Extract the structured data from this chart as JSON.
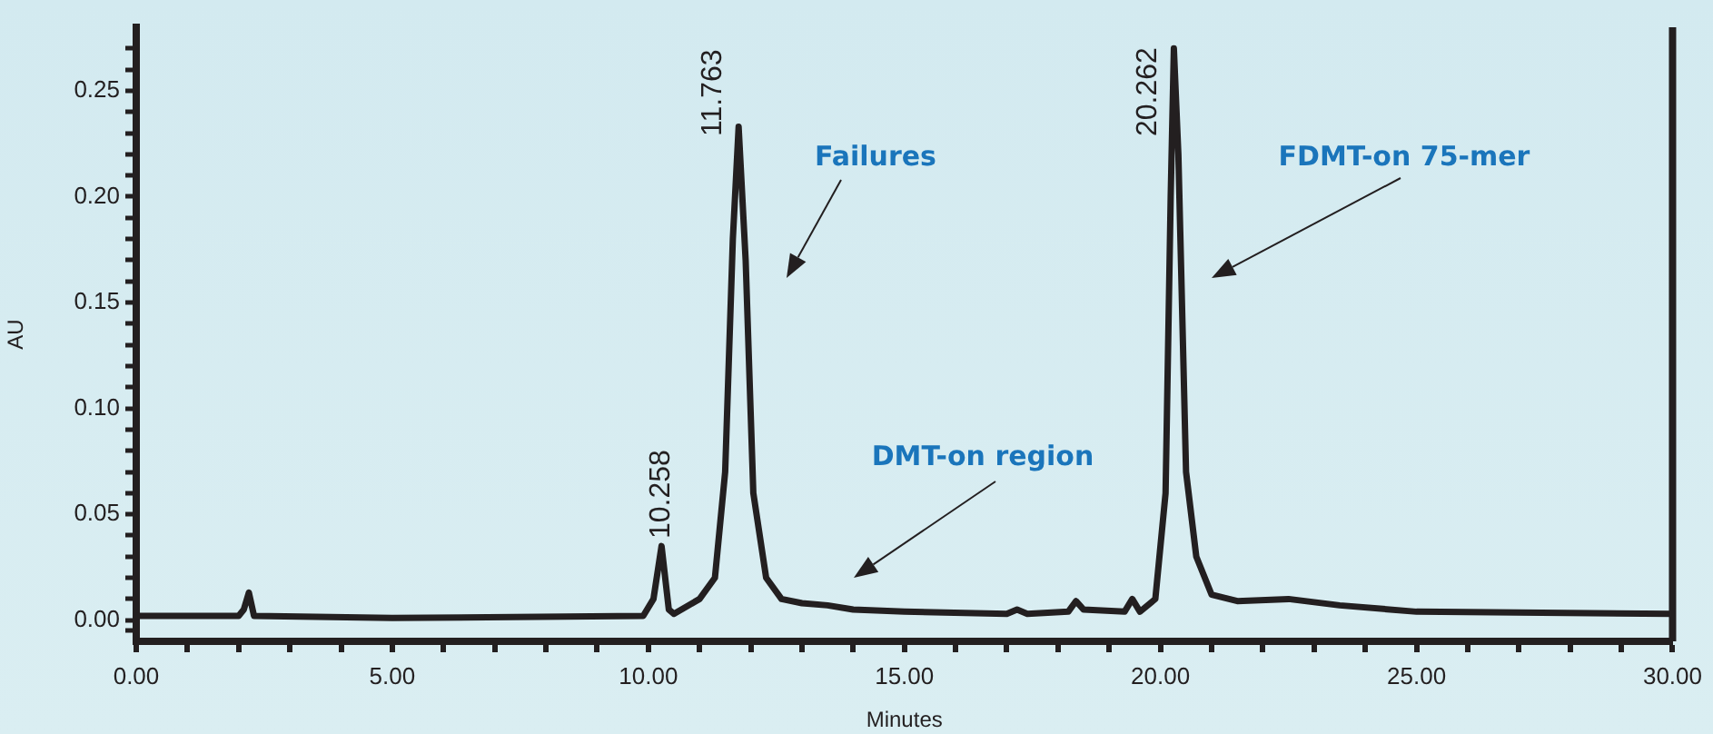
{
  "chart_data": {
    "type": "line",
    "xlabel": "Minutes",
    "ylabel": "AU",
    "xlim": [
      0,
      30
    ],
    "ylim": [
      -0.01,
      0.28
    ],
    "xticks": [
      {
        "value": 0,
        "label": "0.00"
      },
      {
        "value": 1,
        "label": null
      },
      {
        "value": 2,
        "label": null
      },
      {
        "value": 3,
        "label": null
      },
      {
        "value": 4,
        "label": null
      },
      {
        "value": 5,
        "label": "5.00"
      },
      {
        "value": 6,
        "label": null
      },
      {
        "value": 7,
        "label": null
      },
      {
        "value": 8,
        "label": null
      },
      {
        "value": 9,
        "label": null
      },
      {
        "value": 10,
        "label": "10.00"
      },
      {
        "value": 11,
        "label": null
      },
      {
        "value": 12,
        "label": null
      },
      {
        "value": 13,
        "label": null
      },
      {
        "value": 14,
        "label": null
      },
      {
        "value": 15,
        "label": "15.00"
      },
      {
        "value": 16,
        "label": null
      },
      {
        "value": 17,
        "label": null
      },
      {
        "value": 18,
        "label": null
      },
      {
        "value": 19,
        "label": null
      },
      {
        "value": 20,
        "label": "20.00"
      },
      {
        "value": 21,
        "label": null
      },
      {
        "value": 22,
        "label": null
      },
      {
        "value": 23,
        "label": null
      },
      {
        "value": 24,
        "label": null
      },
      {
        "value": 25,
        "label": "25.00"
      },
      {
        "value": 26,
        "label": null
      },
      {
        "value": 27,
        "label": null
      },
      {
        "value": 28,
        "label": null
      },
      {
        "value": 29,
        "label": null
      },
      {
        "value": 30,
        "label": "30.00"
      }
    ],
    "yticks": [
      {
        "value": -0.005,
        "label": null
      },
      {
        "value": 0,
        "label": "0.00"
      },
      {
        "value": 0.01,
        "label": null
      },
      {
        "value": 0.02,
        "label": null
      },
      {
        "value": 0.03,
        "label": null
      },
      {
        "value": 0.04,
        "label": null
      },
      {
        "value": 0.05,
        "label": "0.05"
      },
      {
        "value": 0.06,
        "label": null
      },
      {
        "value": 0.07,
        "label": null
      },
      {
        "value": 0.08,
        "label": null
      },
      {
        "value": 0.09,
        "label": null
      },
      {
        "value": 0.1,
        "label": "0.10"
      },
      {
        "value": 0.11,
        "label": null
      },
      {
        "value": 0.12,
        "label": null
      },
      {
        "value": 0.13,
        "label": null
      },
      {
        "value": 0.14,
        "label": null
      },
      {
        "value": 0.15,
        "label": "0.15"
      },
      {
        "value": 0.16,
        "label": null
      },
      {
        "value": 0.17,
        "label": null
      },
      {
        "value": 0.18,
        "label": null
      },
      {
        "value": 0.19,
        "label": null
      },
      {
        "value": 0.2,
        "label": "0.20"
      },
      {
        "value": 0.21,
        "label": null
      },
      {
        "value": 0.22,
        "label": null
      },
      {
        "value": 0.23,
        "label": null
      },
      {
        "value": 0.24,
        "label": null
      },
      {
        "value": 0.25,
        "label": "0.25"
      },
      {
        "value": 0.26,
        "label": null
      },
      {
        "value": 0.27,
        "label": null
      }
    ],
    "grid": false,
    "legend": false,
    "marker": "none",
    "line_style": "solid",
    "series": [
      {
        "color": "#231f20",
        "x": [
          0,
          2.0,
          2.1,
          2.2,
          2.3,
          5,
          9.9,
          10.1,
          10.258,
          10.4,
          10.5,
          11.0,
          11.3,
          11.5,
          11.65,
          11.763,
          11.9,
          12.05,
          12.3,
          12.6,
          13,
          13.5,
          14,
          15,
          17,
          17.2,
          17.4,
          18.2,
          18.35,
          18.5,
          19.3,
          19.45,
          19.6,
          19.9,
          20.1,
          20.2,
          20.262,
          20.35,
          20.5,
          20.7,
          21,
          21.5,
          22.5,
          23.5,
          25,
          30
        ],
        "values": [
          0.002,
          0.002,
          0.005,
          0.013,
          0.002,
          0.001,
          0.002,
          0.01,
          0.035,
          0.005,
          0.003,
          0.01,
          0.02,
          0.07,
          0.18,
          0.233,
          0.17,
          0.06,
          0.02,
          0.01,
          0.008,
          0.007,
          0.005,
          0.004,
          0.003,
          0.005,
          0.003,
          0.004,
          0.009,
          0.005,
          0.004,
          0.01,
          0.004,
          0.01,
          0.06,
          0.2,
          0.27,
          0.22,
          0.07,
          0.03,
          0.012,
          0.009,
          0.01,
          0.007,
          0.004,
          0.003
        ]
      }
    ],
    "annotations": [
      {
        "text": "10.258",
        "x": 10.258,
        "y": 0.035
      },
      {
        "text": "11.763",
        "x": 11.763,
        "y": 0.233
      },
      {
        "text": "20.262",
        "x": 20.262,
        "y": 0.27
      },
      "Failures",
      "DMT-on region",
      "FDMT-on 75-mer"
    ]
  }
}
